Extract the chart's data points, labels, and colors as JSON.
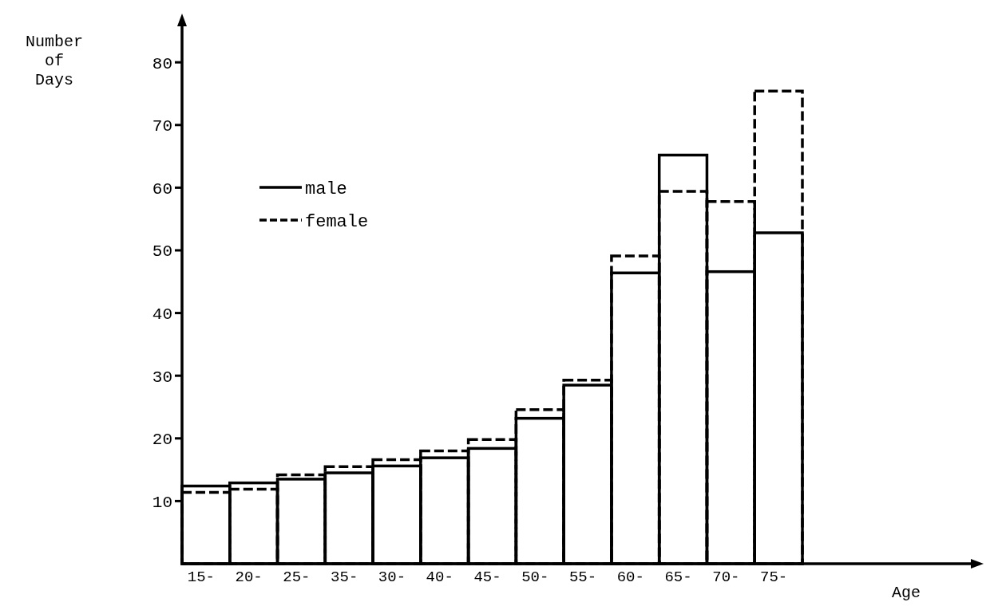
{
  "chart_data": {
    "type": "bar",
    "annotations": [
      "Age"
    ],
    "ylabel": "Number of Days",
    "categories": [
      "15-",
      "20-",
      "25-",
      "35-",
      "30-",
      "40-",
      "45-",
      "50-",
      "55-",
      "60-",
      "65-",
      "70-",
      "75-"
    ],
    "series": [
      {
        "name": "male",
        "color": "#000000",
        "line_style": "solid",
        "values": [
          12.4,
          12.9,
          13.5,
          14.5,
          15.6,
          16.9,
          18.4,
          23.2,
          28.5,
          46.4,
          65.2,
          46.6,
          52.8
        ]
      },
      {
        "name": "female",
        "color": "#000000",
        "line_style": "dashed",
        "values": [
          11.4,
          11.9,
          14.2,
          15.5,
          16.6,
          18.0,
          19.8,
          24.6,
          29.3,
          49.1,
          59.4,
          57.8,
          75.4
        ]
      }
    ],
    "ylim": [
      0,
      86
    ],
    "yticks": [
      10,
      20,
      30,
      40,
      50,
      60,
      70,
      80
    ],
    "legend": "top left",
    "grid": false
  }
}
